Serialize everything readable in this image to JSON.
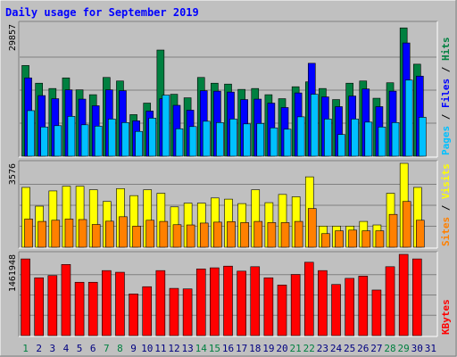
{
  "chart_data": [
    {
      "type": "bar",
      "title": "Daily usage for September 2019",
      "categories": [
        "1",
        "2",
        "3",
        "4",
        "5",
        "6",
        "7",
        "8",
        "9",
        "10",
        "11",
        "12",
        "13",
        "14",
        "15",
        "16",
        "17",
        "18",
        "19",
        "20",
        "21",
        "22",
        "23",
        "24",
        "25",
        "26",
        "27",
        "28",
        "29",
        "30",
        "31"
      ],
      "weekend_days": [
        "1",
        "7",
        "8",
        "14",
        "15",
        "21",
        "22",
        "28",
        "29"
      ],
      "ylabel_max": "29857",
      "ylim": [
        0,
        29857
      ],
      "series": [
        {
          "name": "Hits",
          "color": "#008040",
          "values": [
            20500,
            16500,
            15300,
            17700,
            15000,
            13900,
            17800,
            17000,
            9400,
            12000,
            24000,
            14000,
            13200,
            17800,
            16500,
            16300,
            15100,
            15300,
            13900,
            13000,
            15700,
            16800,
            15300,
            12800,
            16500,
            17000,
            13100,
            16600,
            29000,
            20800,
            0
          ]
        },
        {
          "name": "Files",
          "color": "#0000ff",
          "values": [
            17700,
            13700,
            13000,
            15000,
            12900,
            11400,
            15000,
            14800,
            8000,
            10200,
            13000,
            11500,
            10400,
            14800,
            14700,
            14500,
            12800,
            12900,
            12000,
            11000,
            14300,
            21000,
            13400,
            11200,
            13600,
            15200,
            11200,
            14700,
            25600,
            18100,
            0
          ]
        },
        {
          "name": "Pages",
          "color": "#00c0ff",
          "values": [
            10300,
            6600,
            6900,
            9000,
            7100,
            6800,
            8400,
            7600,
            5600,
            8600,
            13800,
            6200,
            6700,
            7900,
            7600,
            8400,
            7300,
            7400,
            6400,
            6100,
            8900,
            14000,
            8400,
            4900,
            8400,
            7700,
            6600,
            7600,
            17200,
            8800,
            0
          ]
        }
      ]
    },
    {
      "type": "bar",
      "categories": [
        "1",
        "2",
        "3",
        "4",
        "5",
        "6",
        "7",
        "8",
        "9",
        "10",
        "11",
        "12",
        "13",
        "14",
        "15",
        "16",
        "17",
        "18",
        "19",
        "20",
        "21",
        "22",
        "23",
        "24",
        "25",
        "26",
        "27",
        "28",
        "29",
        "30",
        "31"
      ],
      "ylabel_max": "3576",
      "ylim": [
        0,
        3576
      ],
      "series": [
        {
          "name": "Visits",
          "color": "#ffff00",
          "values": [
            2550,
            1750,
            2400,
            2600,
            2600,
            2450,
            1950,
            2500,
            2200,
            2450,
            2300,
            1720,
            1880,
            1880,
            2100,
            2050,
            1860,
            2450,
            1900,
            2250,
            2150,
            3000,
            900,
            900,
            900,
            1100,
            950,
            2300,
            3576,
            2550,
            0
          ]
        },
        {
          "name": "Sites",
          "color": "#ff8000",
          "values": [
            1200,
            1100,
            1150,
            1200,
            1180,
            970,
            1110,
            1300,
            900,
            1150,
            1100,
            960,
            950,
            1030,
            1070,
            1090,
            1050,
            1100,
            1050,
            1050,
            1100,
            1650,
            580,
            700,
            730,
            700,
            700,
            1400,
            1950,
            1150,
            0
          ]
        }
      ]
    },
    {
      "type": "bar",
      "categories": [
        "1",
        "2",
        "3",
        "4",
        "5",
        "6",
        "7",
        "8",
        "9",
        "10",
        "11",
        "12",
        "13",
        "14",
        "15",
        "16",
        "17",
        "18",
        "19",
        "20",
        "21",
        "22",
        "23",
        "24",
        "25",
        "26",
        "27",
        "28",
        "29",
        "30",
        "31"
      ],
      "ylabel_max": "1461948",
      "ylim": [
        0,
        1461948
      ],
      "series": [
        {
          "name": "KBytes",
          "color": "#ff0000",
          "values": [
            1380000,
            1040000,
            1080000,
            1280000,
            960000,
            960000,
            1170000,
            1140000,
            750000,
            880000,
            1170000,
            850000,
            840000,
            1200000,
            1220000,
            1250000,
            1160000,
            1240000,
            1040000,
            910000,
            1100000,
            1320000,
            1170000,
            920000,
            1030000,
            1070000,
            820000,
            1240000,
            1461948,
            1380000,
            0
          ]
        }
      ]
    }
  ],
  "legend_top": [
    {
      "label": "Pages",
      "color": "#00c0ff"
    },
    {
      "label": "Files",
      "color": "#0000ff"
    },
    {
      "label": "Hits",
      "color": "#008040"
    }
  ],
  "legend_mid": [
    {
      "label": "Sites",
      "color": "#ff8000"
    },
    {
      "label": "Visits",
      "color": "#ffff00"
    }
  ],
  "legend_bottom": [
    {
      "label": "KBytes",
      "color": "#ff0000"
    }
  ],
  "legend_separator": " / ",
  "colors": {
    "background": "#c0c0c0",
    "title": "#0000ff",
    "weekday_label": "#000080",
    "weekend_label": "#008040"
  }
}
